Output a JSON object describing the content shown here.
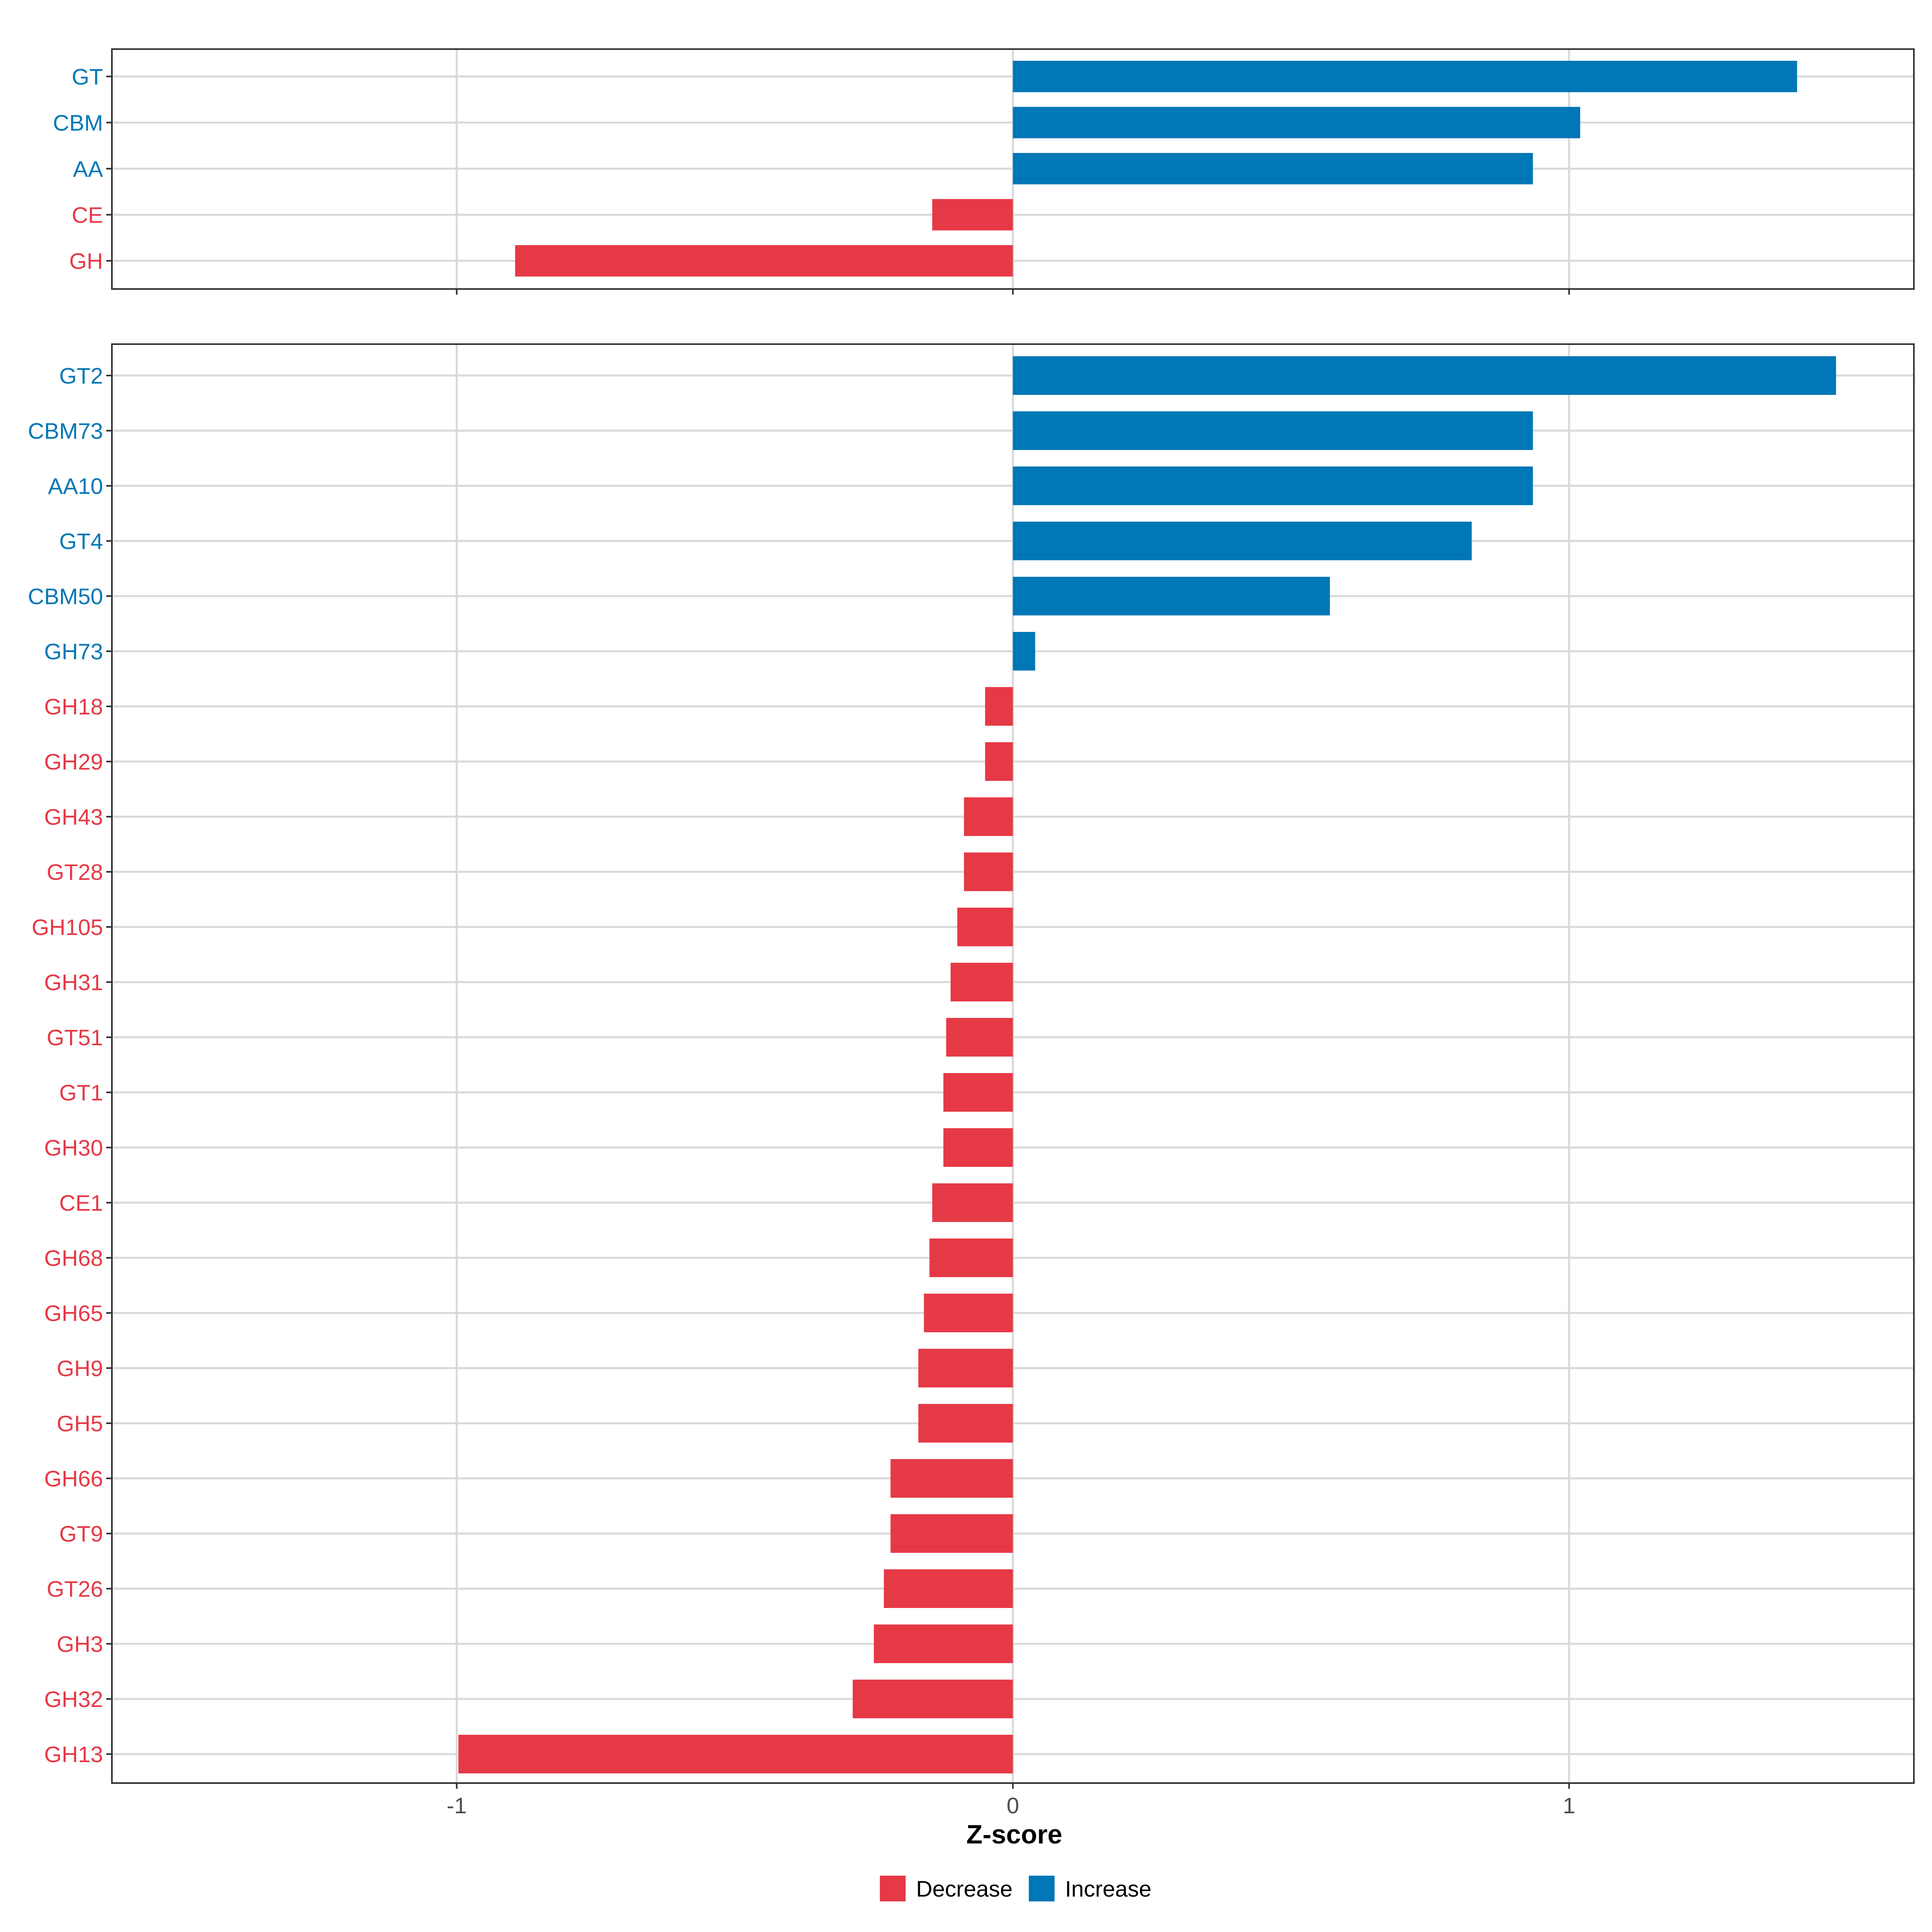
{
  "chart_data": [
    {
      "type": "bar",
      "orientation": "horizontal",
      "panel": "top",
      "categories": [
        "GT",
        "CBM",
        "AA",
        "CE",
        "GH"
      ],
      "values": [
        1.41,
        1.02,
        0.935,
        -0.145,
        -0.895
      ],
      "xlim": [
        -1.62,
        1.62
      ],
      "xticks": [
        -1,
        0,
        1
      ],
      "grid": true
    },
    {
      "type": "bar",
      "orientation": "horizontal",
      "panel": "bottom",
      "categories": [
        "GT2",
        "CBM73",
        "AA10",
        "GT4",
        "CBM50",
        "GH73",
        "GH18",
        "GH29",
        "GH43",
        "GT28",
        "GH105",
        "GH31",
        "GT51",
        "GT1",
        "GH30",
        "CE1",
        "GH68",
        "GH65",
        "GH9",
        "GH5",
        "GH66",
        "GT9",
        "GT26",
        "GH3",
        "GH32",
        "GH13"
      ],
      "values": [
        1.48,
        0.935,
        0.935,
        0.825,
        0.57,
        0.04,
        -0.05,
        -0.05,
        -0.088,
        -0.088,
        -0.1,
        -0.112,
        -0.12,
        -0.125,
        -0.125,
        -0.145,
        -0.15,
        -0.16,
        -0.17,
        -0.17,
        -0.22,
        -0.22,
        -0.232,
        -0.25,
        -0.288,
        -0.997
      ],
      "xlim": [
        -1.62,
        1.62
      ],
      "xticks": [
        -1,
        0,
        1
      ],
      "grid": true
    }
  ],
  "x_tick_labels": [
    "-1",
    "0",
    "1"
  ],
  "xlabel": "Z-score",
  "colors": {
    "Decrease": "#E63946",
    "Increase": "#0077B6"
  },
  "legend": {
    "position": "bottom",
    "items": [
      {
        "label": "Decrease",
        "color": "#E63946"
      },
      {
        "label": "Increase",
        "color": "#0077B6"
      }
    ]
  }
}
